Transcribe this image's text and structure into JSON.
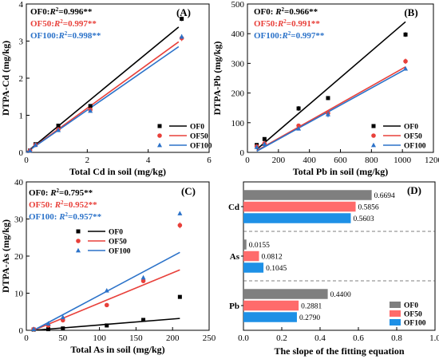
{
  "colors": {
    "OF0": "#000000",
    "OF50": "#e8403a",
    "OF100": "#2b72c9",
    "bar_OF0": "#7f7f7f",
    "bar_OF50": "#ff6b6b",
    "bar_OF100": "#1e90e6"
  },
  "chart_data": [
    {
      "panel": "(A)",
      "type": "scatter",
      "xlabel": "Total Cd in soil (mg/kg)",
      "ylabel": "DTPA-Cd (mg/kg)",
      "xlim": [
        0,
        6
      ],
      "ylim": [
        0,
        4
      ],
      "xticks": [
        "0",
        "2",
        "4",
        "6"
      ],
      "yticks": [
        "0",
        "1",
        "2",
        "3",
        "4"
      ],
      "legend": [
        "OF0",
        "OF50",
        "OF100"
      ],
      "legend_position": "bottom-right",
      "annotations": [
        {
          "series": "OF0",
          "label": "OF0:",
          "r2": "R",
          "val": "=0.996**"
        },
        {
          "series": "OF50",
          "label": "OF50:",
          "r2": "R",
          "val": "=0.997**"
        },
        {
          "series": "OF100",
          "label": "OF100:",
          "r2": "R",
          "val": "=0.998**"
        }
      ],
      "series": [
        {
          "name": "OF0",
          "points": [
            [
              0.12,
              0.05
            ],
            [
              0.3,
              0.22
            ],
            [
              1.05,
              0.72
            ],
            [
              2.1,
              1.25
            ],
            [
              5.1,
              3.6
            ]
          ],
          "err": [
            0,
            0,
            0.03,
            0.04,
            0.06
          ],
          "fit": [
            [
              0,
              0
            ],
            [
              5.0,
              3.38
            ]
          ]
        },
        {
          "name": "OF50",
          "points": [
            [
              0.12,
              0.05
            ],
            [
              0.3,
              0.2
            ],
            [
              1.05,
              0.62
            ],
            [
              2.1,
              1.15
            ],
            [
              5.1,
              3.08
            ]
          ],
          "err": [
            0,
            0,
            0.03,
            0.04,
            0.08
          ],
          "fit": [
            [
              0,
              0
            ],
            [
              5.0,
              2.98
            ]
          ]
        },
        {
          "name": "OF100",
          "points": [
            [
              0.12,
              0.05
            ],
            [
              0.3,
              0.2
            ],
            [
              1.05,
              0.6
            ],
            [
              2.1,
              1.12
            ],
            [
              5.1,
              3.12
            ]
          ],
          "err": [
            0,
            0,
            0.03,
            0.04,
            0.06
          ],
          "fit": [
            [
              0,
              0
            ],
            [
              5.0,
              2.85
            ]
          ]
        }
      ]
    },
    {
      "panel": "(B)",
      "type": "scatter",
      "xlabel": "Total Pb in soil (mg/kg)",
      "ylabel": "DTPA-Pb (mg/kg)",
      "xlim": [
        0,
        1200
      ],
      "ylim": [
        0,
        500
      ],
      "xticks": [
        "0",
        "200",
        "400",
        "600",
        "800",
        "1000",
        "1200"
      ],
      "yticks": [
        "0",
        "100",
        "200",
        "300",
        "400",
        "500"
      ],
      "legend": [
        "OF0",
        "OF50",
        "OF100"
      ],
      "legend_position": "bottom-right",
      "annotations": [
        {
          "series": "OF0",
          "label": "OF0: ",
          "r2": "R",
          "val": "=0.966**"
        },
        {
          "series": "OF50",
          "label": "OF50:",
          "r2": "R",
          "val": "=0.991**"
        },
        {
          "series": "OF100",
          "label": "OF100:",
          "r2": "R",
          "val": "=0.997**"
        }
      ],
      "series": [
        {
          "name": "OF0",
          "points": [
            [
              60,
              25
            ],
            [
              110,
              45
            ],
            [
              330,
              148
            ],
            [
              520,
              183
            ],
            [
              1020,
              397
            ]
          ],
          "err": [
            3,
            4,
            8,
            6,
            8
          ],
          "fit": [
            [
              60,
              10
            ],
            [
              1020,
              440
            ]
          ]
        },
        {
          "name": "OF50",
          "points": [
            [
              60,
              20
            ],
            [
              110,
              30
            ],
            [
              330,
              90
            ],
            [
              520,
              132
            ],
            [
              1020,
              307
            ]
          ],
          "err": [
            2,
            3,
            5,
            8,
            9
          ],
          "fit": [
            [
              60,
              6
            ],
            [
              1020,
              288
            ]
          ]
        },
        {
          "name": "OF100",
          "points": [
            [
              60,
              18
            ],
            [
              110,
              28
            ],
            [
              330,
              80
            ],
            [
              520,
              128
            ],
            [
              1020,
              282
            ]
          ],
          "err": [
            2,
            3,
            4,
            10,
            6
          ],
          "fit": [
            [
              60,
              4
            ],
            [
              1020,
              280
            ]
          ]
        }
      ]
    },
    {
      "panel": "(C)",
      "type": "scatter",
      "xlabel": "Total As in soil (mg/kg)",
      "ylabel": "DTPA-As (mg/kg)",
      "xlim": [
        0,
        250
      ],
      "ylim": [
        0,
        40
      ],
      "xticks": [
        "0",
        "50",
        "100",
        "150",
        "200",
        "250"
      ],
      "yticks": [
        "0",
        "10",
        "20",
        "30",
        "40"
      ],
      "legend": [
        "OF0",
        "OF50",
        "OF100"
      ],
      "legend_position": "upper-middle",
      "annotations": [
        {
          "series": "OF0",
          "label": "OF0:  ",
          "r2": "R",
          "val": "=0.795**"
        },
        {
          "series": "OF50",
          "label": "OF50: ",
          "r2": "R",
          "val": "=0.952**"
        },
        {
          "series": "OF100",
          "label": "OF100: ",
          "r2": "R",
          "val": "=0.957**"
        }
      ],
      "series": [
        {
          "name": "OF0",
          "points": [
            [
              10,
              0.2
            ],
            [
              30,
              0.3
            ],
            [
              50,
              0.5
            ],
            [
              110,
              1.3
            ],
            [
              160,
              2.8
            ],
            [
              210,
              9
            ]
          ],
          "err": [
            0,
            0,
            0,
            0.1,
            0.2,
            0.3
          ],
          "fit": [
            [
              10,
              0
            ],
            [
              210,
              3.2
            ]
          ]
        },
        {
          "name": "OF50",
          "points": [
            [
              10,
              0.3
            ],
            [
              30,
              1.3
            ],
            [
              50,
              2.7
            ],
            [
              110,
              6.8
            ],
            [
              160,
              13.3
            ],
            [
              210,
              28.3
            ]
          ],
          "err": [
            0,
            0.2,
            0.3,
            0.3,
            0.5,
            0.8
          ],
          "fit": [
            [
              10,
              0
            ],
            [
              210,
              16.3
            ]
          ]
        },
        {
          "name": "OF100",
          "points": [
            [
              10,
              0.3
            ],
            [
              30,
              1.8
            ],
            [
              50,
              3.5
            ],
            [
              110,
              10.7
            ],
            [
              160,
              14.2
            ],
            [
              210,
              31.5
            ]
          ],
          "err": [
            0,
            0.2,
            0.3,
            0.3,
            0.5,
            0.5
          ],
          "fit": [
            [
              10,
              0
            ],
            [
              210,
              21
            ]
          ]
        }
      ]
    },
    {
      "panel": "(D)",
      "type": "bar",
      "orientation": "horizontal",
      "xlabel": "The slope of the fitting equation",
      "xlim": [
        0,
        1.0
      ],
      "xticks": [
        "0.0",
        "0.2",
        "0.4",
        "0.6",
        "0.8",
        "1.0"
      ],
      "categories": [
        "Cd",
        "As",
        "Pb"
      ],
      "legend": [
        "OF0",
        "OF50",
        "OF100"
      ],
      "legend_position": "bottom-right",
      "series": [
        {
          "name": "OF0",
          "values": [
            0.6694,
            0.0155,
            0.44
          ],
          "labels": [
            "0.6694",
            "0.0155",
            "0.4400"
          ]
        },
        {
          "name": "OF50",
          "values": [
            0.5856,
            0.0812,
            0.2881
          ],
          "labels": [
            "0.5856",
            "0.0812",
            "0.2881"
          ]
        },
        {
          "name": "OF100",
          "values": [
            0.5603,
            0.1045,
            0.279
          ],
          "labels": [
            "0.5603",
            "0.1045",
            "0.2790"
          ]
        }
      ]
    }
  ]
}
